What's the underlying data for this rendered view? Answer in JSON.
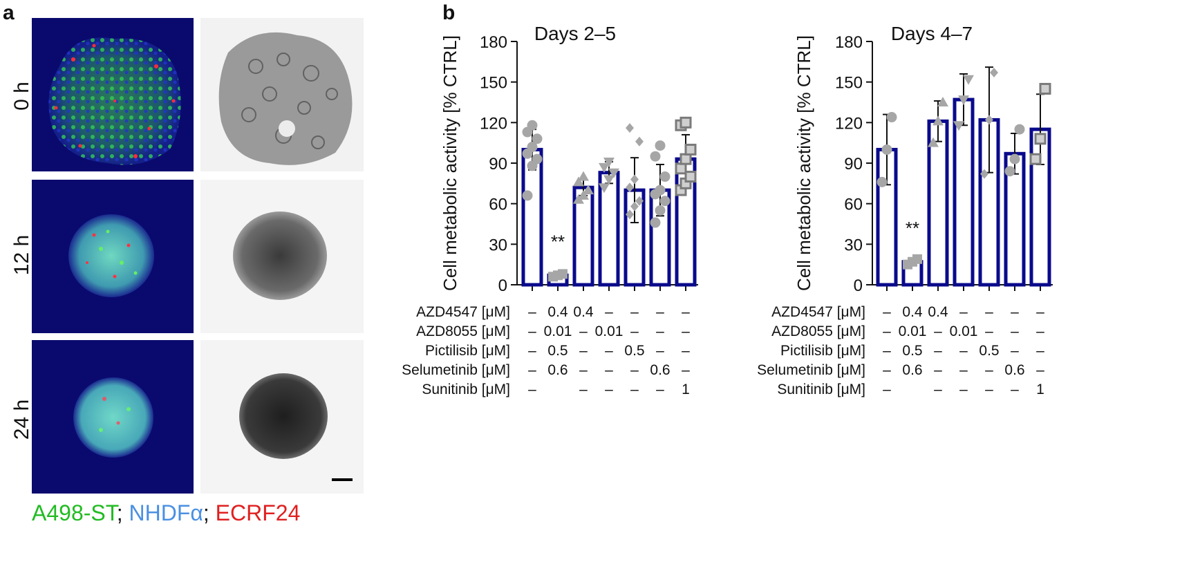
{
  "panels": {
    "a": "a",
    "b": "b"
  },
  "panel_a": {
    "rows": [
      "0 h",
      "12 h",
      "24 h"
    ],
    "legend": [
      {
        "text": "A498-ST",
        "color": "#22bb22"
      },
      {
        "sep": "; "
      },
      {
        "text": "NHDFα",
        "color": "#4a90e2"
      },
      {
        "sep": "; "
      },
      {
        "text": "ECRF24",
        "color": "#e02020"
      }
    ]
  },
  "chart_data": [
    {
      "type": "bar",
      "title": "Days 2–5",
      "ylabel": "Cell metabolic activity [% CTRL]",
      "ylim": [
        0,
        180
      ],
      "yticks": [
        0,
        30,
        60,
        90,
        120,
        150,
        180
      ],
      "values": [
        100,
        7,
        72,
        83,
        70,
        70,
        93
      ],
      "errors": [
        15,
        1,
        6,
        8,
        24,
        19,
        18
      ],
      "significance": [
        "",
        "**",
        "",
        "",
        "",
        "",
        ""
      ],
      "points": [
        [
          66,
          88,
          93,
          97,
          102,
          108,
          113,
          118
        ],
        [
          6,
          7,
          8
        ],
        [
          63,
          66,
          70,
          76,
          80
        ],
        [
          72,
          78,
          83,
          87,
          91
        ],
        [
          52,
          58,
          62,
          72,
          78,
          106,
          116
        ],
        [
          46,
          55,
          62,
          67,
          70,
          80,
          95,
          103
        ],
        [
          70,
          75,
          80,
          86,
          93,
          100,
          118,
          120
        ]
      ],
      "markers": [
        "circle",
        "square",
        "triangle",
        "triangle-down",
        "diamond",
        "circle",
        "square-outline"
      ],
      "treatments": [
        {
          "label": "AZD4547 [μM]",
          "values": [
            "–",
            "0.4",
            "0.4",
            "–",
            "–",
            "–",
            "–"
          ]
        },
        {
          "label": "AZD8055 [μM]",
          "values": [
            "–",
            "0.01",
            "–",
            "0.01",
            "–",
            "–",
            "–"
          ]
        },
        {
          "label": "Pictilisib [μM]",
          "values": [
            "–",
            "0.5",
            "–",
            "–",
            "0.5",
            "–",
            "–"
          ]
        },
        {
          "label": "Selumetinib [μM]",
          "values": [
            "–",
            "0.6",
            "–",
            "–",
            "–",
            "0.6",
            "–"
          ]
        },
        {
          "label": "Sunitinib [μM]",
          "values": [
            "–",
            "",
            "–",
            "–",
            "–",
            "–",
            "1"
          ]
        }
      ]
    },
    {
      "type": "bar",
      "title": "Days 4–7",
      "ylabel": "Cell metabolic activity [% CTRL]",
      "ylim": [
        0,
        180
      ],
      "yticks": [
        0,
        30,
        60,
        90,
        120,
        150,
        180
      ],
      "values": [
        100,
        17,
        121,
        137,
        122,
        97,
        115
      ],
      "errors": [
        26,
        2,
        15,
        19,
        39,
        15,
        26
      ],
      "significance": [
        "",
        "**",
        "",
        "",
        "",
        "",
        ""
      ],
      "points": [
        [
          76,
          100,
          124
        ],
        [
          15,
          17,
          19
        ],
        [
          105,
          121,
          135
        ],
        [
          118,
          137,
          152
        ],
        [
          82,
          122,
          157
        ],
        [
          84,
          93,
          115
        ],
        [
          93,
          108,
          145
        ]
      ],
      "markers": [
        "circle",
        "square",
        "triangle",
        "triangle-down",
        "diamond",
        "circle",
        "square-outline"
      ],
      "treatments": [
        {
          "label": "AZD4547 [μM]",
          "values": [
            "–",
            "0.4",
            "0.4",
            "–",
            "–",
            "–",
            "–"
          ]
        },
        {
          "label": "AZD8055 [μM]",
          "values": [
            "–",
            "0.01",
            "–",
            "0.01",
            "–",
            "–",
            "–"
          ]
        },
        {
          "label": "Pictilisib [μM]",
          "values": [
            "–",
            "0.5",
            "–",
            "–",
            "0.5",
            "–",
            "–"
          ]
        },
        {
          "label": "Selumetinib [μM]",
          "values": [
            "–",
            "0.6",
            "–",
            "–",
            "–",
            "0.6",
            "–"
          ]
        },
        {
          "label": "Sunitinib [μM]",
          "values": [
            "–",
            "",
            "–",
            "–",
            "–",
            "–",
            "1"
          ]
        }
      ]
    }
  ],
  "colors": {
    "bar": "#0a0a8c",
    "point": "#a6a6a6",
    "point_edge": "#7a7a7a"
  }
}
